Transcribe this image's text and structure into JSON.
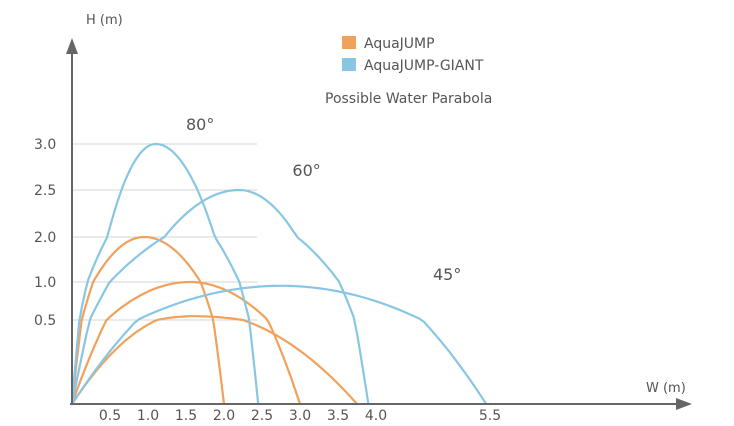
{
  "chart_data": {
    "type": "line",
    "xlabel": "W (m)",
    "ylabel": "H (m)",
    "subtitle": "Possible Water Parabola",
    "xlim": [
      0,
      6.2
    ],
    "ylim": [
      0,
      3.6
    ],
    "x_ticks": [
      0.5,
      1.0,
      1.5,
      2.0,
      2.5,
      3.0,
      3.5,
      4.0,
      5.5
    ],
    "x_tick_labels": [
      "0.5",
      "1.0",
      "1.5",
      "2.0",
      "2.5",
      "3.0",
      "3.5",
      "4.0",
      "5.5"
    ],
    "y_ticks": [
      0.5,
      1.0,
      2.0,
      2.5,
      3.0
    ],
    "y_tick_labels": [
      "0.5",
      "1.0",
      "2.0",
      "2.5",
      "3.0"
    ],
    "grid": "horizontal-at-ticks",
    "legend": {
      "placement": "top-center",
      "entries": [
        {
          "label": "AquaJUMP",
          "color": "#f0a25c"
        },
        {
          "label": "AquaJUMP-GIANT",
          "color": "#88c6e4"
        }
      ]
    },
    "angle_labels": [
      {
        "text": "80°",
        "x": 1.5,
        "y": 3.15
      },
      {
        "text": "60°",
        "x": 2.9,
        "y": 2.65
      },
      {
        "text": "45°",
        "x": 4.75,
        "y": 1.05
      }
    ],
    "series": [
      {
        "product": "AquaJUMP",
        "angle": "80°",
        "color": "#f0a25c",
        "apex": [
          0.95,
          2.0
        ],
        "range": 2.0
      },
      {
        "product": "AquaJUMP",
        "angle": "60°",
        "color": "#f0a25c",
        "apex": [
          1.55,
          1.0
        ],
        "range": 3.0
      },
      {
        "product": "AquaJUMP",
        "angle": "45°",
        "color": "#f0a25c",
        "apex": [
          1.6,
          0.55
        ],
        "range": 3.75
      },
      {
        "product": "AquaJUMP-GIANT",
        "angle": "80°",
        "color": "#88c6e4",
        "apex": [
          1.1,
          3.0
        ],
        "range": 2.45
      },
      {
        "product": "AquaJUMP-GIANT",
        "angle": "60°",
        "color": "#88c6e4",
        "apex": [
          2.2,
          2.5
        ],
        "range": 3.9
      },
      {
        "product": "AquaJUMP-GIANT",
        "angle": "45°",
        "color": "#88c6e4",
        "apex": [
          2.75,
          0.95
        ],
        "range": 5.45
      }
    ]
  }
}
